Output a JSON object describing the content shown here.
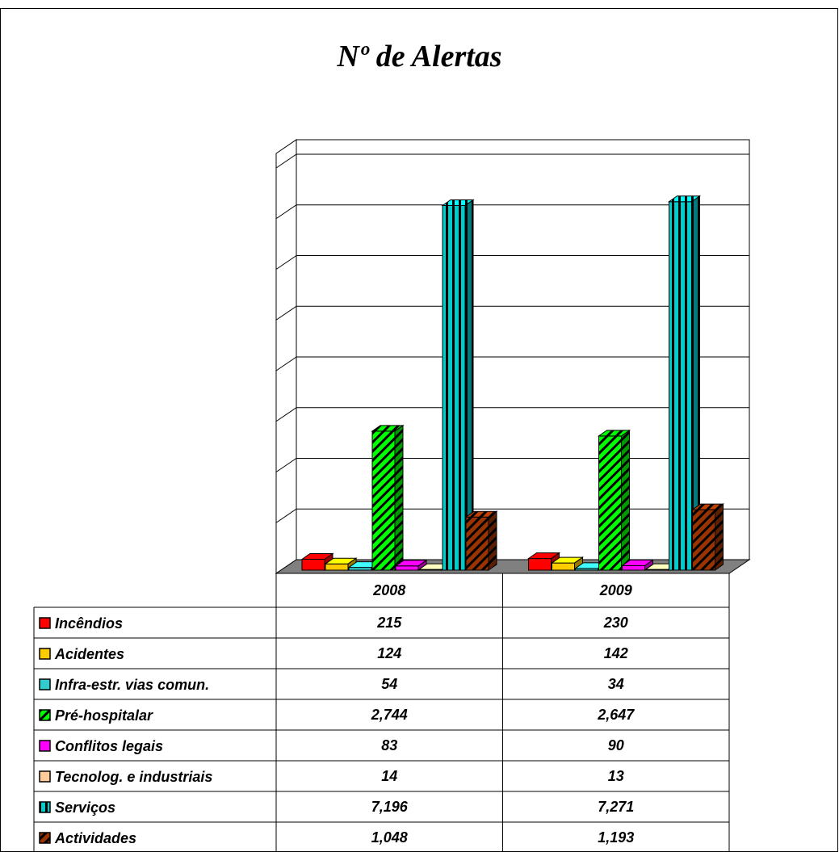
{
  "chart_data": {
    "type": "bar",
    "title": "Nº de Alertas",
    "categories": [
      "2008",
      "2009"
    ],
    "series": [
      {
        "name": "Incêndios",
        "values": [
          215,
          230
        ],
        "display": [
          "215",
          "230"
        ],
        "color": "#ff0000",
        "pattern": "solid"
      },
      {
        "name": "Acidentes",
        "values": [
          124,
          142
        ],
        "display": [
          "124",
          "142"
        ],
        "color": "#ffcc00",
        "pattern": "solid"
      },
      {
        "name": "Infra-estr. vias comun.",
        "values": [
          54,
          34
        ],
        "display": [
          "54",
          "34"
        ],
        "color": "#33cccc",
        "pattern": "solid"
      },
      {
        "name": "Pré-hospitalar",
        "values": [
          2744,
          2647
        ],
        "display": [
          "2,744",
          "2,647"
        ],
        "color": "#00ff00",
        "pattern": "diagonal-stripes"
      },
      {
        "name": "Conflitos legais",
        "values": [
          83,
          90
        ],
        "display": [
          "83",
          "90"
        ],
        "color": "#ff00ff",
        "pattern": "solid"
      },
      {
        "name": "Tecnolog. e industriais",
        "values": [
          14,
          13
        ],
        "display": [
          "14",
          "13"
        ],
        "color": "#ffcc99",
        "pattern": "solid"
      },
      {
        "name": "Serviços",
        "values": [
          7196,
          7271
        ],
        "display": [
          "7,196",
          "7,271"
        ],
        "color": "#00cccc",
        "pattern": "vertical-stripes"
      },
      {
        "name": "Actividades",
        "values": [
          1048,
          1193
        ],
        "display": [
          "1,048",
          "1,193"
        ],
        "color": "#993300",
        "pattern": "diagonal-stripes"
      }
    ],
    "ylim": [
      0,
      8000
    ],
    "grid": true,
    "legend": "data-table"
  }
}
